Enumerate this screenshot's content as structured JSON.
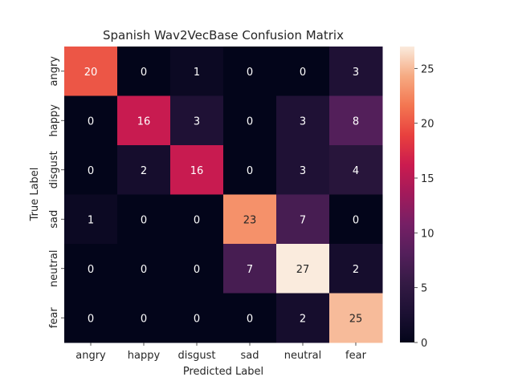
{
  "chart_data": {
    "type": "heatmap",
    "title": "Spanish Wav2VecBase Confusion Matrix",
    "xlabel": "Predicted Label",
    "ylabel": "True Label",
    "x_categories": [
      "angry",
      "happy",
      "disgust",
      "sad",
      "neutral",
      "fear"
    ],
    "y_categories": [
      "angry",
      "happy",
      "disgust",
      "sad",
      "neutral",
      "fear"
    ],
    "values": [
      [
        20,
        0,
        1,
        0,
        0,
        3
      ],
      [
        0,
        16,
        3,
        0,
        3,
        8
      ],
      [
        0,
        2,
        16,
        0,
        3,
        4
      ],
      [
        1,
        0,
        0,
        23,
        7,
        0
      ],
      [
        0,
        0,
        0,
        7,
        27,
        2
      ],
      [
        0,
        0,
        0,
        0,
        2,
        25
      ]
    ],
    "colorbar": {
      "min": 0,
      "max": 27,
      "ticks": [
        0,
        5,
        10,
        15,
        20,
        25
      ],
      "colormap": "rocket"
    }
  }
}
